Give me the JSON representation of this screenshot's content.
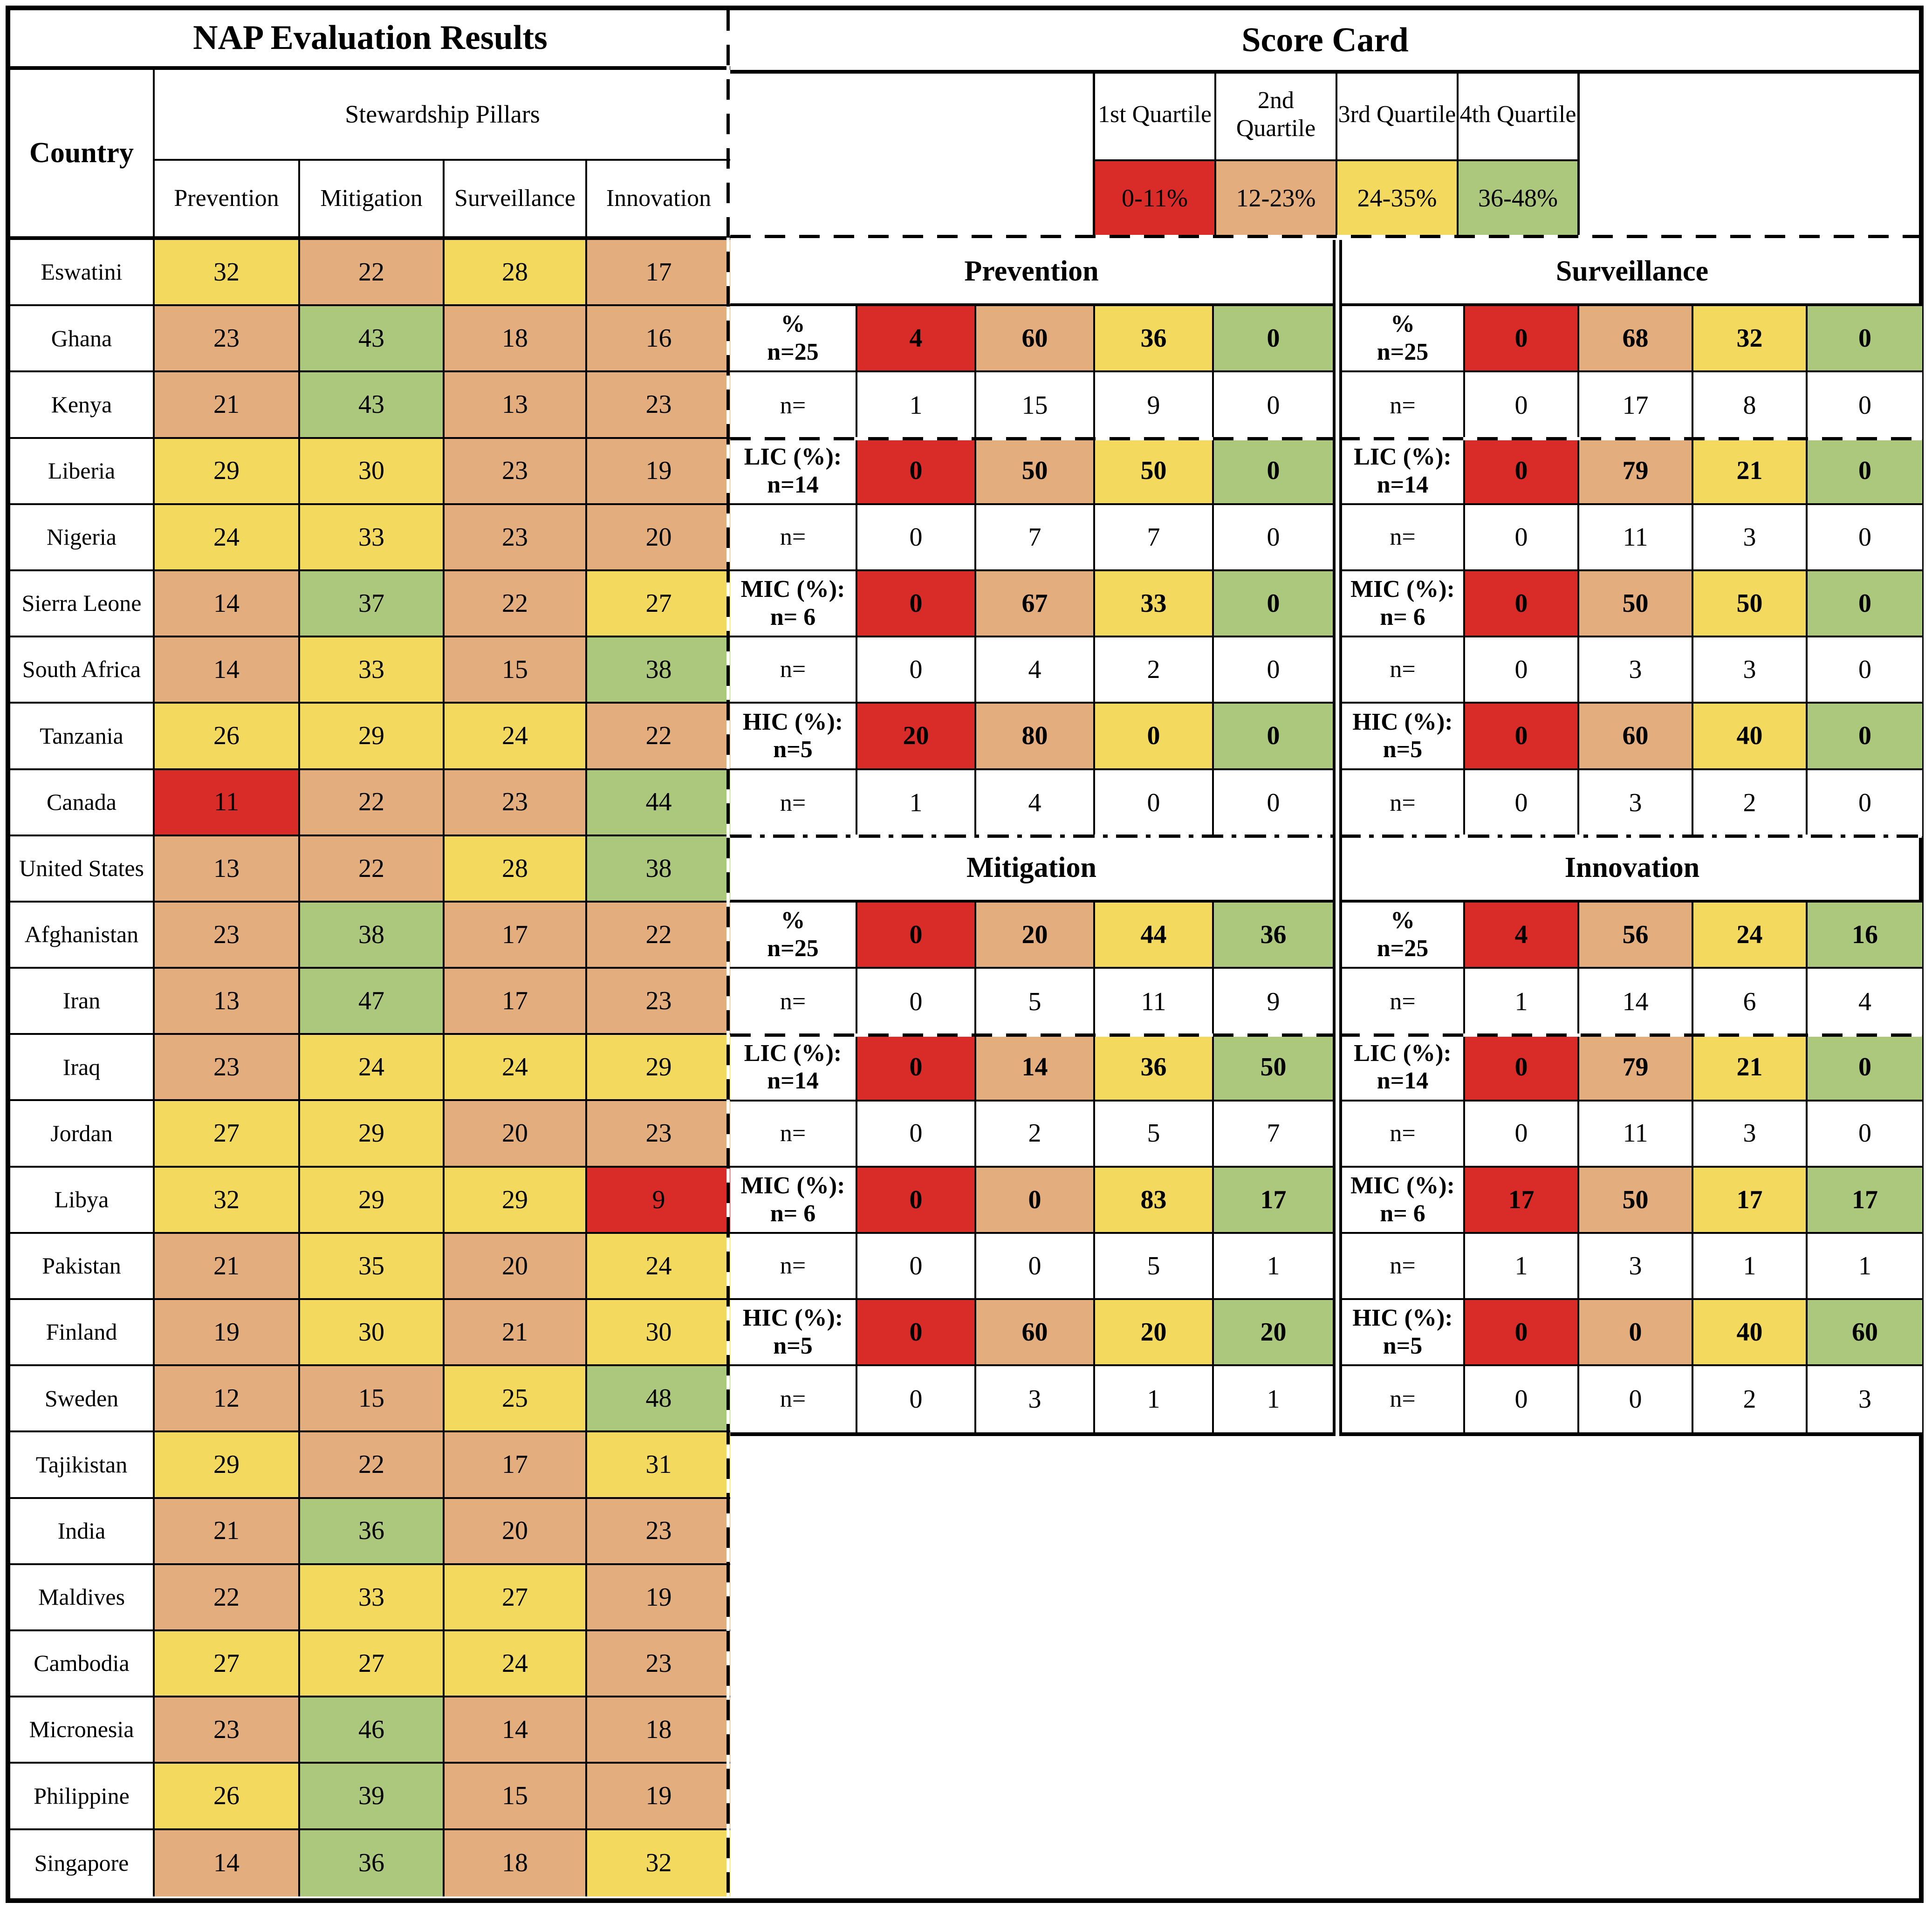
{
  "chart_data": {
    "type": "table",
    "title": "NAP Evaluation Results and Score Card",
    "quartile_colors": {
      "red": "#D92B28",
      "orange": "#E3AD7D",
      "yellow": "#F4D95F",
      "green": "#ABC87D"
    },
    "score_color_rule": {
      "red": [
        0,
        11
      ],
      "orange": [
        12,
        23
      ],
      "yellow": [
        24,
        35
      ],
      "green": [
        36,
        48
      ]
    },
    "left_table": {
      "title": "NAP Evaluation Results",
      "country_header": "Country",
      "group_header": "Stewardship Pillars",
      "columns": [
        "Prevention",
        "Mitigation",
        "Surveillance",
        "Innovation"
      ],
      "rows": [
        {
          "country": "Eswatini",
          "values": [
            32,
            22,
            28,
            17
          ]
        },
        {
          "country": "Ghana",
          "values": [
            23,
            43,
            18,
            16
          ]
        },
        {
          "country": "Kenya",
          "values": [
            21,
            43,
            13,
            23
          ]
        },
        {
          "country": "Liberia",
          "values": [
            29,
            30,
            23,
            19
          ]
        },
        {
          "country": "Nigeria",
          "values": [
            24,
            33,
            23,
            20
          ]
        },
        {
          "country": "Sierra Leone",
          "values": [
            14,
            37,
            22,
            27
          ]
        },
        {
          "country": "South Africa",
          "values": [
            14,
            33,
            15,
            38
          ]
        },
        {
          "country": "Tanzania",
          "values": [
            26,
            29,
            24,
            22
          ]
        },
        {
          "country": "Canada",
          "values": [
            11,
            22,
            23,
            44
          ]
        },
        {
          "country": "United States",
          "values": [
            13,
            22,
            28,
            38
          ]
        },
        {
          "country": "Afghanistan",
          "values": [
            23,
            38,
            17,
            22
          ]
        },
        {
          "country": "Iran",
          "values": [
            13,
            47,
            17,
            23
          ]
        },
        {
          "country": "Iraq",
          "values": [
            23,
            24,
            24,
            29
          ]
        },
        {
          "country": "Jordan",
          "values": [
            27,
            29,
            20,
            23
          ]
        },
        {
          "country": "Libya",
          "values": [
            32,
            29,
            29,
            9
          ]
        },
        {
          "country": "Pakistan",
          "values": [
            21,
            35,
            20,
            24
          ]
        },
        {
          "country": "Finland",
          "values": [
            19,
            30,
            21,
            30
          ]
        },
        {
          "country": "Sweden",
          "values": [
            12,
            15,
            25,
            48
          ]
        },
        {
          "country": "Tajikistan",
          "values": [
            29,
            22,
            17,
            31
          ]
        },
        {
          "country": "India",
          "values": [
            21,
            36,
            20,
            23
          ]
        },
        {
          "country": "Maldives",
          "values": [
            22,
            33,
            27,
            19
          ]
        },
        {
          "country": "Cambodia",
          "values": [
            27,
            27,
            24,
            23
          ]
        },
        {
          "country": "Micronesia",
          "values": [
            23,
            46,
            14,
            18
          ]
        },
        {
          "country": "Philippine",
          "values": [
            26,
            39,
            15,
            19
          ]
        },
        {
          "country": "Singapore",
          "values": [
            14,
            36,
            18,
            32
          ]
        }
      ]
    },
    "score_card": {
      "title": "Score Card",
      "quartile_labels": [
        "1st Quartile",
        "2nd Quartile",
        "3rd Quartile",
        "4th Quartile"
      ],
      "quartile_ranges": [
        "0-11%",
        "12-23%",
        "24-35%",
        "36-48%"
      ],
      "row_labels": [
        "%\nn=25",
        "n=",
        "LIC (%):\nn=14",
        "n=",
        "MIC (%):\nn= 6",
        "n=",
        "HIC (%):\nn=5",
        "n="
      ],
      "tables": [
        {
          "title": "Prevention",
          "rows": [
            [
              4,
              60,
              36,
              0
            ],
            [
              1,
              15,
              9,
              0
            ],
            [
              0,
              50,
              50,
              0
            ],
            [
              0,
              7,
              7,
              0
            ],
            [
              0,
              67,
              33,
              0
            ],
            [
              0,
              4,
              2,
              0
            ],
            [
              20,
              80,
              0,
              0
            ],
            [
              1,
              4,
              0,
              0
            ]
          ]
        },
        {
          "title": "Surveillance",
          "rows": [
            [
              0,
              68,
              32,
              0
            ],
            [
              0,
              17,
              8,
              0
            ],
            [
              0,
              79,
              21,
              0
            ],
            [
              0,
              11,
              3,
              0
            ],
            [
              0,
              50,
              50,
              0
            ],
            [
              0,
              3,
              3,
              0
            ],
            [
              0,
              60,
              40,
              0
            ],
            [
              0,
              3,
              2,
              0
            ]
          ]
        },
        {
          "title": "Mitigation",
          "rows": [
            [
              0,
              20,
              44,
              36
            ],
            [
              0,
              5,
              11,
              9
            ],
            [
              0,
              14,
              36,
              50
            ],
            [
              0,
              2,
              5,
              7
            ],
            [
              0,
              0,
              83,
              17
            ],
            [
              0,
              0,
              5,
              1
            ],
            [
              0,
              60,
              20,
              20
            ],
            [
              0,
              3,
              1,
              1
            ]
          ]
        },
        {
          "title": "Innovation",
          "rows": [
            [
              4,
              56,
              24,
              16
            ],
            [
              1,
              14,
              6,
              4
            ],
            [
              0,
              79,
              21,
              0
            ],
            [
              0,
              11,
              3,
              0
            ],
            [
              17,
              50,
              17,
              17
            ],
            [
              1,
              3,
              1,
              1
            ],
            [
              0,
              0,
              40,
              60
            ],
            [
              0,
              0,
              2,
              3
            ]
          ]
        }
      ]
    }
  }
}
